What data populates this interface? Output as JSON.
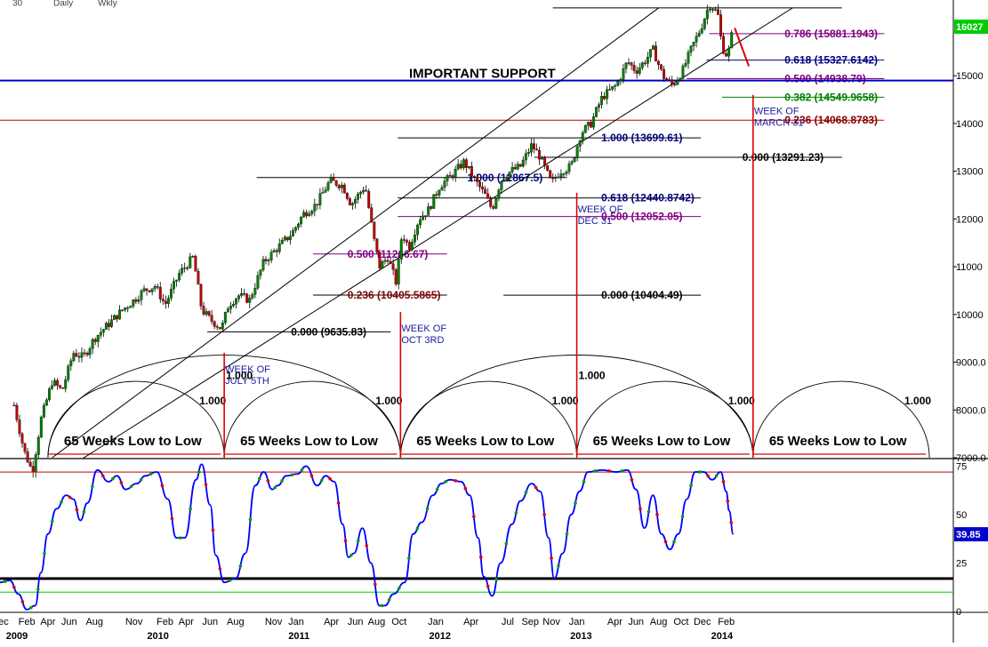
{
  "toolbar": {
    "visible_labels": [
      "30",
      "Daily",
      "Wkly"
    ]
  },
  "chart_data": [
    {
      "type": "candlestick",
      "y_ticks": [
        "15000",
        "14000",
        "13000",
        "12000",
        "11000",
        "10000",
        "9000.0",
        "8000.0",
        "7000.0"
      ],
      "ylim": [
        7000,
        16400
      ],
      "last_price_label": "16027",
      "last_price": 16027,
      "price_path": [
        [
          2009.03,
          8100
        ],
        [
          2009.1,
          7150
        ],
        [
          2009.16,
          6700
        ],
        [
          2009.22,
          7800
        ],
        [
          2009.3,
          8600
        ],
        [
          2009.37,
          8400
        ],
        [
          2009.45,
          9200
        ],
        [
          2009.52,
          9100
        ],
        [
          2009.6,
          9500
        ],
        [
          2009.7,
          9800
        ],
        [
          2009.8,
          10100
        ],
        [
          2009.88,
          10300
        ],
        [
          2009.95,
          10500
        ],
        [
          2010.03,
          10600
        ],
        [
          2010.1,
          10200
        ],
        [
          2010.2,
          10850
        ],
        [
          2010.3,
          11200
        ],
        [
          2010.36,
          10100
        ],
        [
          2010.42,
          9900
        ],
        [
          2010.5,
          9700
        ],
        [
          2010.55,
          10200
        ],
        [
          2010.62,
          10400
        ],
        [
          2010.7,
          10300
        ],
        [
          2010.8,
          11100
        ],
        [
          2010.9,
          11400
        ],
        [
          2011.0,
          11700
        ],
        [
          2011.08,
          12100
        ],
        [
          2011.17,
          12300
        ],
        [
          2011.27,
          12800
        ],
        [
          2011.36,
          12700
        ],
        [
          2011.42,
          12300
        ],
        [
          2011.47,
          12500
        ],
        [
          2011.52,
          12700
        ],
        [
          2011.58,
          11600
        ],
        [
          2011.62,
          11000
        ],
        [
          2011.68,
          11200
        ],
        [
          2011.74,
          10655
        ],
        [
          2011.78,
          11700
        ],
        [
          2011.83,
          11400
        ],
        [
          2011.9,
          12000
        ],
        [
          2011.97,
          12200
        ],
        [
          2012.05,
          12700
        ],
        [
          2012.13,
          12900
        ],
        [
          2012.22,
          13200
        ],
        [
          2012.3,
          12800
        ],
        [
          2012.37,
          12500
        ],
        [
          2012.42,
          12200
        ],
        [
          2012.48,
          12800
        ],
        [
          2012.55,
          13000
        ],
        [
          2012.62,
          13100
        ],
        [
          2012.7,
          13550
        ],
        [
          2012.76,
          13300
        ],
        [
          2012.84,
          12750
        ],
        [
          2012.9,
          13000
        ],
        [
          2012.98,
          13100
        ],
        [
          2013.05,
          13800
        ],
        [
          2013.12,
          14000
        ],
        [
          2013.2,
          14550
        ],
        [
          2013.3,
          14800
        ],
        [
          2013.38,
          15300
        ],
        [
          2013.44,
          15100
        ],
        [
          2013.5,
          15300
        ],
        [
          2013.56,
          15550
        ],
        [
          2013.63,
          15000
        ],
        [
          2013.7,
          14800
        ],
        [
          2013.77,
          15100
        ],
        [
          2013.83,
          15550
        ],
        [
          2013.9,
          16000
        ],
        [
          2013.96,
          16500
        ],
        [
          2014.02,
          16300
        ],
        [
          2014.05,
          15600
        ],
        [
          2014.09,
          15400
        ],
        [
          2014.13,
          16027
        ]
      ],
      "fib_levels": [
        {
          "label": "0.786 (15881.1943)",
          "y": 15881.19,
          "x0": 2013.96,
          "x1": 2015.2,
          "color": "#800080",
          "text_color": "#800080"
        },
        {
          "label": "0.618 (15327.6142)",
          "y": 15327.61,
          "x0": 2013.94,
          "x1": 2015.2,
          "color": "#000080",
          "text_color": "#000080"
        },
        {
          "label": "0.500 (14938.79)",
          "y": 14938.79,
          "x0": 2013.8,
          "x1": 2015.2,
          "color": "#800080",
          "text_color": "#800080"
        },
        {
          "label": "0.382 (14549.9658)",
          "y": 14549.97,
          "x0": 2014.05,
          "x1": 2015.2,
          "color": "#008000",
          "text_color": "#008000"
        },
        {
          "label": "0.236 (14068.8783)",
          "y": 14068.88,
          "x0": 2008.9,
          "x1": 2015.2,
          "color": "#c00000",
          "text_color": "#800000"
        },
        {
          "label": "1.000 (13699.61)",
          "y": 13699.61,
          "x0": 2011.75,
          "x1": 2013.9,
          "color": "#000000",
          "text_color": "#000080"
        },
        {
          "label": "0.000 (13291.23)",
          "y": 13291.23,
          "x0": 2012.72,
          "x1": 2014.9,
          "color": "#000000",
          "text_color": "#000000"
        },
        {
          "label": "1.000 (12867.5)",
          "y": 12867.5,
          "x0": 2010.75,
          "x1": 2012.95,
          "color": "#000000",
          "text_color": "#000080"
        },
        {
          "label": "0.618 (12440.8742)",
          "y": 12440.87,
          "x0": 2011.75,
          "x1": 2013.9,
          "color": "#000000",
          "text_color": "#000080"
        },
        {
          "label": "0.500 (12052.05)",
          "y": 12052.05,
          "x0": 2011.75,
          "x1": 2013.9,
          "color": "#800080",
          "text_color": "#800080"
        },
        {
          "label": "0.500 (11266.67)",
          "y": 11266.67,
          "x0": 2011.15,
          "x1": 2012.1,
          "color": "#800080",
          "text_color": "#800080"
        },
        {
          "label": "0.236 (10405.5865)",
          "y": 10405.59,
          "x0": 2011.15,
          "x1": 2012.1,
          "color": "#000000",
          "text_color": "#800000"
        },
        {
          "label": "0.000 (10404.49)",
          "y": 10404.49,
          "x0": 2012.5,
          "x1": 2013.9,
          "color": "#000000",
          "text_color": "#000000"
        },
        {
          "label": "0.000 (9635.83)",
          "y": 9635.83,
          "x0": 2010.4,
          "x1": 2011.7,
          "color": "#000000",
          "text_color": "#000000"
        }
      ],
      "important_support": {
        "label": "IMPORTANT SUPPORT",
        "y": 14900,
        "color": "#0000c0"
      },
      "top_line": {
        "y": 16420,
        "x0": 2012.85,
        "x1": 2014.9
      },
      "trendlines": [
        {
          "from": [
            2009.3,
            7000
          ],
          "to": [
            2013.6,
            16420
          ]
        },
        {
          "from": [
            2009.52,
            6990
          ],
          "to": [
            2014.55,
            16420
          ]
        }
      ],
      "cycle_markers": [
        {
          "label": "WEEK OF\nJULY 5TH",
          "x": 2010.52,
          "top": 9200
        },
        {
          "label": "WEEK OF\nOCT 3RD",
          "x": 2011.77,
          "top": 10050
        },
        {
          "label": "WEEK OF\nDEC 31",
          "x": 2013.02,
          "top": 12550
        },
        {
          "label": "WEEK OF\nMARCH 31",
          "x": 2014.27,
          "top": 14600
        }
      ],
      "cycle_arcs": [
        {
          "x0": 2009.27,
          "x1": 2010.52,
          "top": 8600,
          "label": "1.000",
          "span_label": "65 Weeks Low to Low"
        },
        {
          "x0": 2010.52,
          "x1": 2011.77,
          "top": 8600,
          "label": "1.000",
          "span_label": "65 Weeks Low to Low"
        },
        {
          "x0": 2011.77,
          "x1": 2013.02,
          "top": 8600,
          "label": "1.000",
          "span_label": "65 Weeks Low to Low"
        },
        {
          "x0": 2013.02,
          "x1": 2014.27,
          "top": 8600,
          "label": "1.000",
          "span_label": "65 Weeks Low to Low"
        },
        {
          "x0": 2014.27,
          "x1": 2015.52,
          "top": 8600,
          "label": "1.000",
          "span_label": "65 Weeks Low to Low"
        }
      ],
      "double_arcs": [
        {
          "x0": 2009.27,
          "x1": 2011.77,
          "top": 9150,
          "label": "1.000"
        },
        {
          "x0": 2011.77,
          "x1": 2014.27,
          "top": 9150,
          "label": "1.000"
        }
      ]
    },
    {
      "type": "line",
      "y_ticks": [
        "75",
        "50",
        "25",
        "0"
      ],
      "ylim": [
        0,
        78
      ],
      "last_value_label": "39.85",
      "last_value": 39.85,
      "upper_line": 72,
      "lower_line_black": 17,
      "lower_line_green": 10,
      "series": [
        [
          2008.93,
          15
        ],
        [
          2009.0,
          16
        ],
        [
          2009.06,
          9
        ],
        [
          2009.12,
          1
        ],
        [
          2009.18,
          3
        ],
        [
          2009.22,
          20
        ],
        [
          2009.27,
          40
        ],
        [
          2009.33,
          53
        ],
        [
          2009.4,
          60
        ],
        [
          2009.45,
          58
        ],
        [
          2009.5,
          47
        ],
        [
          2009.55,
          56
        ],
        [
          2009.62,
          73
        ],
        [
          2009.7,
          67
        ],
        [
          2009.76,
          70
        ],
        [
          2009.82,
          63
        ],
        [
          2009.9,
          66
        ],
        [
          2009.96,
          70
        ],
        [
          2010.04,
          72
        ],
        [
          2010.12,
          58
        ],
        [
          2010.18,
          38
        ],
        [
          2010.24,
          38
        ],
        [
          2010.32,
          68
        ],
        [
          2010.36,
          76
        ],
        [
          2010.42,
          55
        ],
        [
          2010.46,
          29
        ],
        [
          2010.52,
          15
        ],
        [
          2010.6,
          17
        ],
        [
          2010.67,
          30
        ],
        [
          2010.74,
          65
        ],
        [
          2010.8,
          72
        ],
        [
          2010.86,
          63
        ],
        [
          2010.9,
          65
        ],
        [
          2010.96,
          70
        ],
        [
          2011.04,
          71
        ],
        [
          2011.1,
          75
        ],
        [
          2011.18,
          65
        ],
        [
          2011.24,
          70
        ],
        [
          2011.3,
          67
        ],
        [
          2011.36,
          45
        ],
        [
          2011.4,
          28
        ],
        [
          2011.44,
          30
        ],
        [
          2011.5,
          43
        ],
        [
          2011.56,
          25
        ],
        [
          2011.62,
          3
        ],
        [
          2011.66,
          3
        ],
        [
          2011.72,
          9
        ],
        [
          2011.8,
          15
        ],
        [
          2011.86,
          40
        ],
        [
          2011.92,
          46
        ],
        [
          2012.0,
          60
        ],
        [
          2012.06,
          66
        ],
        [
          2012.12,
          68
        ],
        [
          2012.2,
          67
        ],
        [
          2012.26,
          60
        ],
        [
          2012.32,
          38
        ],
        [
          2012.36,
          18
        ],
        [
          2012.42,
          8
        ],
        [
          2012.48,
          25
        ],
        [
          2012.56,
          45
        ],
        [
          2012.62,
          57
        ],
        [
          2012.7,
          66
        ],
        [
          2012.76,
          62
        ],
        [
          2012.82,
          38
        ],
        [
          2012.86,
          17
        ],
        [
          2012.92,
          30
        ],
        [
          2012.98,
          50
        ],
        [
          2013.04,
          62
        ],
        [
          2013.1,
          72
        ],
        [
          2013.2,
          73
        ],
        [
          2013.3,
          72
        ],
        [
          2013.38,
          73
        ],
        [
          2013.44,
          63
        ],
        [
          2013.5,
          43
        ],
        [
          2013.56,
          60
        ],
        [
          2013.62,
          40
        ],
        [
          2013.68,
          32
        ],
        [
          2013.74,
          40
        ],
        [
          2013.8,
          58
        ],
        [
          2013.86,
          72
        ],
        [
          2013.92,
          72
        ],
        [
          2013.98,
          68
        ],
        [
          2014.04,
          72
        ],
        [
          2014.08,
          62
        ],
        [
          2014.1,
          52
        ],
        [
          2014.13,
          39.85
        ]
      ]
    }
  ],
  "x_axis": {
    "months": [
      {
        "label": "Dec",
        "t": 2008.93
      },
      {
        "label": "Feb",
        "t": 2009.12
      },
      {
        "label": "Apr",
        "t": 2009.27
      },
      {
        "label": "Jun",
        "t": 2009.42
      },
      {
        "label": "Aug",
        "t": 2009.6
      },
      {
        "label": "Nov",
        "t": 2009.88
      },
      {
        "label": "Feb",
        "t": 2010.1
      },
      {
        "label": "Apr",
        "t": 2010.25
      },
      {
        "label": "Jun",
        "t": 2010.42
      },
      {
        "label": "Aug",
        "t": 2010.6
      },
      {
        "label": "Nov",
        "t": 2010.87
      },
      {
        "label": "Jan",
        "t": 2011.03
      },
      {
        "label": "Apr",
        "t": 2011.28
      },
      {
        "label": "Jun",
        "t": 2011.45
      },
      {
        "label": "Aug",
        "t": 2011.6
      },
      {
        "label": "Oct",
        "t": 2011.76
      },
      {
        "label": "Jan",
        "t": 2012.02
      },
      {
        "label": "Apr",
        "t": 2012.27
      },
      {
        "label": "Jul",
        "t": 2012.53
      },
      {
        "label": "Sep",
        "t": 2012.69
      },
      {
        "label": "Nov",
        "t": 2012.84
      },
      {
        "label": "Jan",
        "t": 2013.02
      },
      {
        "label": "Apr",
        "t": 2013.29
      },
      {
        "label": "Jun",
        "t": 2013.44
      },
      {
        "label": "Aug",
        "t": 2013.6
      },
      {
        "label": "Oct",
        "t": 2013.76
      },
      {
        "label": "Dec",
        "t": 2013.91
      },
      {
        "label": "Feb",
        "t": 2014.08
      }
    ],
    "years": [
      {
        "label": "2009",
        "t": 2009.05
      },
      {
        "label": "2010",
        "t": 2010.05
      },
      {
        "label": "2011",
        "t": 2011.05
      },
      {
        "label": "2012",
        "t": 2012.05
      },
      {
        "label": "2013",
        "t": 2013.05
      },
      {
        "label": "2014",
        "t": 2014.05
      }
    ]
  },
  "colors": {
    "grid": "#c8c8c8",
    "candle_up": "#008000",
    "candle_down": "#c00000",
    "trendline": "#000000",
    "cycle_red": "#e00000",
    "oscillator": "#0000ff",
    "last_price_bg": "#00cc00",
    "last_osc_bg": "#0000cc"
  }
}
